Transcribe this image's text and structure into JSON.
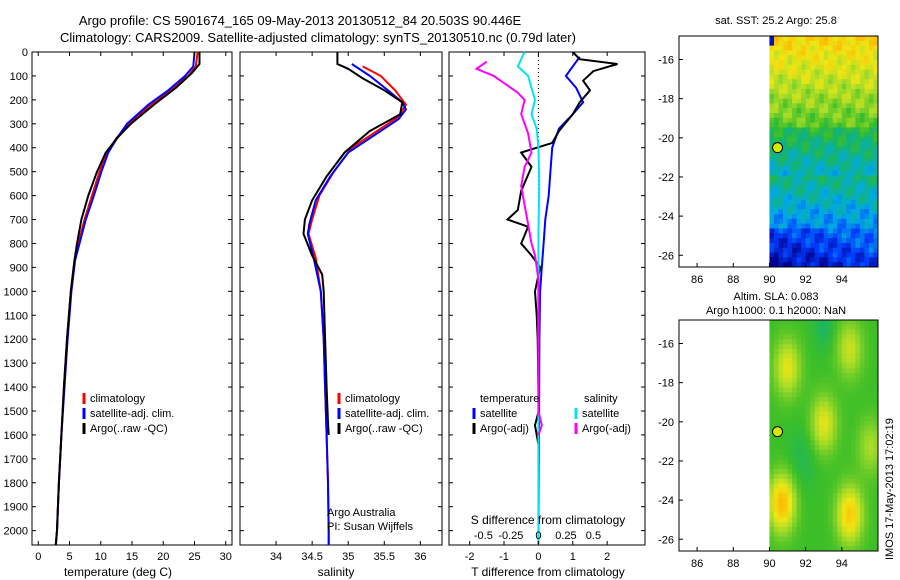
{
  "header": {
    "line1": "Argo profile: CS 5901674_165 09-May-2013 20130512_84 20.503S 90.446E",
    "line2": "Climatology: CARS2009. Satellite-adjusted climatology: synTS_20130510.nc (0.79d later)"
  },
  "depth_ticks": [
    0,
    100,
    200,
    300,
    400,
    500,
    600,
    700,
    800,
    900,
    1000,
    1100,
    1200,
    1300,
    1400,
    1500,
    1600,
    1700,
    1800,
    1900,
    2000
  ],
  "footer": {
    "credit_org": "Argo Australia",
    "credit_pi": "PI: Susan Wijffels",
    "stamp": "IMOS 17-May-2013 17:02:19"
  },
  "colors": {
    "climatology": "#ff0000",
    "satellite": "#0000ff",
    "argo": "#000000",
    "sat_salinity": "#00e5ee",
    "argo_salinity": "#ff00ff"
  },
  "chart_data": [
    {
      "id": "temperature",
      "type": "line",
      "xlabel": "temperature (deg C)",
      "ylabel": "",
      "xlim": [
        -1,
        31
      ],
      "ylim": [
        2060,
        0
      ],
      "y_reversed": true,
      "xticks": [
        0,
        5,
        10,
        15,
        20,
        25,
        30
      ],
      "legend": [
        "climatology",
        "satellite-adj. clim.",
        "Argo(..raw -QC)"
      ],
      "legend_position": "lower-middle",
      "series": [
        {
          "name": "climatology",
          "color": "#ff0000",
          "points": [
            [
              25.5,
              0
            ],
            [
              25.2,
              60
            ],
            [
              24,
              100
            ],
            [
              21,
              160
            ],
            [
              18,
              220
            ],
            [
              14.5,
              300
            ],
            [
              12.5,
              360
            ],
            [
              11,
              420
            ],
            [
              9.8,
              500
            ],
            [
              8.6,
              600
            ],
            [
              7.4,
              700
            ],
            [
              6.4,
              800
            ],
            [
              5.8,
              870
            ],
            [
              5.2,
              1000
            ],
            [
              4.6,
              1200
            ],
            [
              4.1,
              1400
            ],
            [
              3.7,
              1600
            ],
            [
              3.3,
              1800
            ],
            [
              3.0,
              2000
            ],
            [
              2.8,
              2060
            ]
          ]
        },
        {
          "name": "satellite-adj. clim.",
          "color": "#0000ff",
          "points": [
            [
              25.0,
              0
            ],
            [
              24.8,
              60
            ],
            [
              23.5,
              100
            ],
            [
              20.8,
              160
            ],
            [
              17.6,
              220
            ],
            [
              14.2,
              300
            ],
            [
              12.6,
              360
            ],
            [
              11.2,
              420
            ],
            [
              10.1,
              500
            ],
            [
              8.9,
              600
            ],
            [
              7.6,
              700
            ],
            [
              6.6,
              800
            ],
            [
              5.9,
              870
            ],
            [
              5.3,
              1000
            ],
            [
              4.7,
              1200
            ],
            [
              4.2,
              1400
            ],
            [
              3.7,
              1600
            ],
            [
              3.3,
              1800
            ],
            [
              3.0,
              2000
            ],
            [
              2.8,
              2060
            ]
          ]
        },
        {
          "name": "Argo(..raw -QC)",
          "color": "#000000",
          "points": [
            [
              25.8,
              0
            ],
            [
              25.8,
              50
            ],
            [
              24.5,
              90
            ],
            [
              22,
              150
            ],
            [
              18.5,
              220
            ],
            [
              14.8,
              300
            ],
            [
              12.6,
              360
            ],
            [
              10.8,
              420
            ],
            [
              9.4,
              500
            ],
            [
              8.0,
              600
            ],
            [
              6.9,
              700
            ],
            [
              6.2,
              800
            ],
            [
              5.8,
              870
            ],
            [
              5.2,
              1000
            ],
            [
              4.6,
              1200
            ],
            [
              4.1,
              1400
            ],
            [
              3.7,
              1600
            ],
            [
              3.3,
              1800
            ],
            [
              3.0,
              2000
            ],
            [
              2.8,
              2060
            ]
          ]
        }
      ]
    },
    {
      "id": "salinity",
      "type": "line",
      "xlabel": "salinity",
      "ylabel": "",
      "xlim": [
        33.5,
        36.3
      ],
      "ylim": [
        2060,
        0
      ],
      "y_reversed": true,
      "xticks": [
        34,
        34.5,
        35,
        35.5,
        36
      ],
      "xtick_labels": [
        "34",
        "34.5",
        "35",
        "35.5",
        "36"
      ],
      "legend": [
        "climatology",
        "satellite-adj. clim.",
        "Argo(..raw -QC)"
      ],
      "legend_position": "lower-right",
      "series": [
        {
          "name": "climatology",
          "color": "#ff0000",
          "points": [
            [
              35.2,
              60
            ],
            [
              35.45,
              100
            ],
            [
              35.65,
              160
            ],
            [
              35.8,
              220
            ],
            [
              35.7,
              270
            ],
            [
              35.4,
              330
            ],
            [
              35.05,
              400
            ],
            [
              34.8,
              500
            ],
            [
              34.6,
              600
            ],
            [
              34.5,
              700
            ],
            [
              34.45,
              760
            ],
            [
              34.55,
              860
            ],
            [
              34.62,
              1000
            ],
            [
              34.66,
              1200
            ],
            [
              34.68,
              1400
            ],
            [
              34.7,
              1600
            ],
            [
              34.72,
              1800
            ],
            [
              34.73,
              2000
            ],
            [
              34.73,
              2060
            ]
          ]
        },
        {
          "name": "satellite-adj. clim.",
          "color": "#0000ff",
          "points": [
            [
              35.05,
              50
            ],
            [
              35.3,
              100
            ],
            [
              35.55,
              160
            ],
            [
              35.75,
              210
            ],
            [
              35.8,
              240
            ],
            [
              35.7,
              280
            ],
            [
              35.4,
              340
            ],
            [
              35.0,
              420
            ],
            [
              34.75,
              520
            ],
            [
              34.55,
              620
            ],
            [
              34.46,
              720
            ],
            [
              34.44,
              760
            ],
            [
              34.52,
              860
            ],
            [
              34.62,
              1000
            ],
            [
              34.66,
              1200
            ],
            [
              34.68,
              1400
            ],
            [
              34.7,
              1600
            ],
            [
              34.72,
              1800
            ],
            [
              34.73,
              2000
            ],
            [
              34.73,
              2060
            ]
          ]
        },
        {
          "name": "Argo(..raw -QC)",
          "color": "#000000",
          "points": [
            [
              34.85,
              0
            ],
            [
              34.85,
              50
            ],
            [
              35.0,
              70
            ],
            [
              35.2,
              110
            ],
            [
              35.5,
              160
            ],
            [
              35.75,
              210
            ],
            [
              35.72,
              260
            ],
            [
              35.3,
              330
            ],
            [
              34.95,
              420
            ],
            [
              34.7,
              520
            ],
            [
              34.5,
              620
            ],
            [
              34.4,
              700
            ],
            [
              34.38,
              760
            ],
            [
              34.5,
              850
            ],
            [
              34.64,
              930
            ],
            [
              34.66,
              1000
            ],
            [
              34.68,
              1200
            ],
            [
              34.7,
              1400
            ],
            [
              34.72,
              1550
            ],
            [
              34.73,
              1600
            ]
          ]
        }
      ]
    },
    {
      "id": "difference",
      "type": "line",
      "xlabel": "T difference from climatology",
      "xlabel_top": "S difference from climatology",
      "xlim": [
        -2.6,
        3.1
      ],
      "ylim": [
        2060,
        0
      ],
      "y_reversed": true,
      "xticks": [
        -2,
        -1,
        0,
        1,
        2
      ],
      "xtick_labels_T": [
        "-2",
        "-1",
        "0",
        "1",
        "2"
      ],
      "xtick_labels_S": [
        "-0.5",
        "-0.25",
        "0",
        "0.25",
        "0.5"
      ],
      "legend_temperature_title": "temperature",
      "legend_salinity_title": "salinity",
      "legend_temperature": [
        "satellite",
        "Argo(-adj)"
      ],
      "legend_salinity": [
        "satellite",
        "Argo(-adj)"
      ],
      "legend_position": "lower-middle",
      "series": [
        {
          "name": "temperature satellite",
          "color": "#0000ff",
          "points": [
            [
              1.2,
              20
            ],
            [
              1.0,
              60
            ],
            [
              0.8,
              100
            ],
            [
              1.1,
              150
            ],
            [
              1.3,
              210
            ],
            [
              1.0,
              260
            ],
            [
              0.6,
              320
            ],
            [
              0.4,
              400
            ],
            [
              0.35,
              500
            ],
            [
              0.3,
              600
            ],
            [
              0.2,
              700
            ],
            [
              0.15,
              800
            ],
            [
              0.1,
              900
            ],
            [
              0.05,
              1000
            ],
            [
              0.03,
              1200
            ],
            [
              0.02,
              1500
            ],
            [
              0.01,
              1800
            ],
            [
              0,
              2060
            ]
          ]
        },
        {
          "name": "temperature Argo(-adj)",
          "color": "#000000",
          "points": [
            [
              1.0,
              0
            ],
            [
              1.2,
              30
            ],
            [
              2.3,
              50
            ],
            [
              1.6,
              80
            ],
            [
              1.3,
              120
            ],
            [
              1.5,
              160
            ],
            [
              1.2,
              210
            ],
            [
              1.0,
              260
            ],
            [
              0.6,
              330
            ],
            [
              0.4,
              380
            ],
            [
              -0.5,
              420
            ],
            [
              -0.2,
              480
            ],
            [
              -0.5,
              580
            ],
            [
              -0.6,
              660
            ],
            [
              -0.9,
              700
            ],
            [
              -0.3,
              730
            ],
            [
              -0.5,
              800
            ],
            [
              -0.2,
              850
            ],
            [
              0.05,
              900
            ],
            [
              -0.1,
              1000
            ],
            [
              -0.05,
              1100
            ],
            [
              -0.02,
              1200
            ],
            [
              0.01,
              1500
            ],
            [
              -0.1,
              1560
            ],
            [
              0,
              1640
            ]
          ]
        },
        {
          "name": "salinity satellite",
          "color": "#00e5ee",
          "points": [
            [
              -0.4,
              0
            ],
            [
              -0.6,
              60
            ],
            [
              -0.3,
              100
            ],
            [
              -0.2,
              150
            ],
            [
              -0.1,
              200
            ],
            [
              -0.2,
              260
            ],
            [
              -0.05,
              320
            ],
            [
              0,
              400
            ],
            [
              0.02,
              500
            ],
            [
              0.02,
              600
            ],
            [
              0.01,
              700
            ],
            [
              0,
              800
            ],
            [
              0,
              1000
            ],
            [
              0,
              1500
            ],
            [
              0,
              1800
            ],
            [
              0,
              2060
            ]
          ]
        },
        {
          "name": "salinity Argo(-adj)",
          "color": "#ff00ff",
          "points": [
            [
              -1.5,
              40
            ],
            [
              -1.8,
              70
            ],
            [
              -1.3,
              100
            ],
            [
              -1.0,
              130
            ],
            [
              -0.6,
              170
            ],
            [
              -0.4,
              200
            ],
            [
              -0.5,
              260
            ],
            [
              -0.3,
              340
            ],
            [
              -0.2,
              420
            ],
            [
              -0.4,
              480
            ],
            [
              -0.5,
              560
            ],
            [
              -0.4,
              640
            ],
            [
              -0.3,
              720
            ],
            [
              -0.2,
              800
            ],
            [
              -0.1,
              850
            ],
            [
              0,
              950
            ],
            [
              0,
              1100
            ],
            [
              0,
              1300
            ],
            [
              0,
              1500
            ],
            [
              0.1,
              1560
            ],
            [
              0,
              1600
            ]
          ]
        }
      ]
    },
    {
      "id": "sst_map",
      "type": "heatmap",
      "title": "sat. SST: 25.2  Argo: 25.8",
      "xlim": [
        85,
        96
      ],
      "ylim": [
        -26.6,
        -14.8
      ],
      "xticks": [
        86,
        88,
        90,
        92,
        94
      ],
      "yticks": [
        -16,
        -18,
        -20,
        -22,
        -24,
        -26
      ],
      "data_lon_start": 90,
      "profile_location": [
        90.446,
        -20.503
      ]
    },
    {
      "id": "sla_map",
      "type": "heatmap",
      "title_line1": "Altim. SLA: 0.083",
      "title_line2": "Argo h1000: 0.1  h2000: NaN",
      "xlim": [
        85,
        96
      ],
      "ylim": [
        -26.6,
        -14.8
      ],
      "xticks": [
        86,
        88,
        90,
        92,
        94
      ],
      "yticks": [
        -16,
        -18,
        -20,
        -22,
        -24,
        -26
      ],
      "data_lon_start": 90,
      "profile_location": [
        90.446,
        -20.503
      ]
    }
  ]
}
